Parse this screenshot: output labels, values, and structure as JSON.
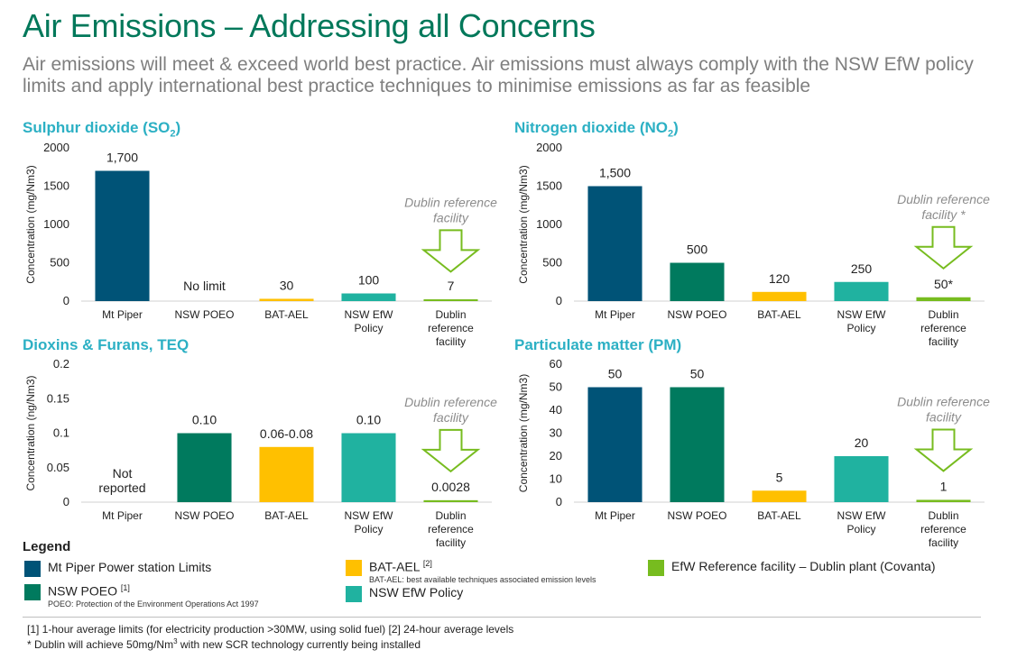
{
  "header": {
    "title": "Air Emissions – Addressing all Concerns",
    "subtitle": "Air emissions will meet & exceed world best practice. Air emissions must always comply with the NSW EfW policy limits and apply international best practice techniques to minimise emissions as far as feasible"
  },
  "colors": {
    "mt_piper": "#005377",
    "nsw_poeo": "#007a5e",
    "bat_ael": "#ffc000",
    "nsw_efw": "#20b2a0",
    "dublin": "#77bc1f"
  },
  "categories": [
    "Mt Piper",
    "NSW POEO",
    "BAT-AEL",
    "NSW EfW Policy",
    "Dublin reference facility"
  ],
  "chart_data": [
    {
      "type": "bar",
      "title": "Sulphur dioxide (SO",
      "title_sub": "2",
      "title_end": ")",
      "ylabel": "Concentration (mg/Nm3)",
      "ylim": [
        0,
        2000
      ],
      "yticks": [
        "0",
        "500",
        "1000",
        "1500",
        "2000"
      ],
      "categories": [
        "Mt Piper",
        "NSW POEO",
        "BAT-AEL",
        "NSW EfW Policy",
        "Dublin reference facility"
      ],
      "values": [
        1700,
        null,
        30,
        100,
        7
      ],
      "labels": [
        "1,700",
        "No limit",
        "30",
        "100",
        "7"
      ],
      "annotation": "Dublin reference facility"
    },
    {
      "type": "bar",
      "title": "Nitrogen dioxide (NO",
      "title_sub": "2",
      "title_end": ")",
      "ylabel": "Concentration (mg/Nm3)",
      "ylim": [
        0,
        2000
      ],
      "yticks": [
        "0",
        "500",
        "1000",
        "1500",
        "2000"
      ],
      "categories": [
        "Mt Piper",
        "NSW POEO",
        "BAT-AEL",
        "NSW EfW Policy",
        "Dublin reference facility"
      ],
      "values": [
        1500,
        500,
        120,
        250,
        50
      ],
      "labels": [
        "1,500",
        "500",
        "120",
        "250",
        "50*"
      ],
      "annotation": "Dublin reference facility *"
    },
    {
      "type": "bar",
      "title": "Dioxins & Furans, TEQ",
      "title_sub": "",
      "title_end": "",
      "ylabel": "Concentration (ng/Nm3)",
      "ylim": [
        0,
        0.2
      ],
      "yticks": [
        "0",
        "0.05",
        "0.1",
        "0.15",
        "0.2"
      ],
      "categories": [
        "Mt Piper",
        "NSW POEO",
        "BAT-AEL",
        "NSW EfW Policy",
        "Dublin reference facility"
      ],
      "values": [
        null,
        0.1,
        0.08,
        0.1,
        0.0028
      ],
      "labels": [
        "Not reported",
        "0.10",
        "0.06-0.08",
        "0.10",
        "0.0028"
      ],
      "annotation": "Dublin reference facility"
    },
    {
      "type": "bar",
      "title": "Particulate matter (PM)",
      "title_sub": "",
      "title_end": "",
      "ylabel": "Concentration (mg/Nm3)",
      "ylim": [
        0,
        60
      ],
      "yticks": [
        "0",
        "10",
        "20",
        "30",
        "40",
        "50",
        "60"
      ],
      "categories": [
        "Mt Piper",
        "NSW POEO",
        "BAT-AEL",
        "NSW EfW Policy",
        "Dublin reference facility"
      ],
      "values": [
        50,
        50,
        5,
        20,
        1
      ],
      "labels": [
        "50",
        "50",
        "5",
        "20",
        "1"
      ],
      "annotation": "Dublin reference facility"
    }
  ],
  "legend": {
    "heading": "Legend",
    "items": [
      {
        "label": "Mt Piper Power station Limits",
        "sup": "",
        "sub": ""
      },
      {
        "label": "NSW POEO ",
        "sup": "[1]",
        "sub": "POEO: Protection of the Environment Operations Act 1997"
      },
      {
        "label": "BAT-AEL ",
        "sup": "[2]",
        "sub": "BAT-AEL: best available techniques associated emission levels"
      },
      {
        "label": "NSW EfW Policy",
        "sup": "",
        "sub": ""
      },
      {
        "label": "EfW Reference facility – Dublin plant (Covanta)",
        "sup": "",
        "sub": ""
      }
    ]
  },
  "footnotes": {
    "note1": "[1] 1-hour average limits (for electricity production >30MW, using solid fuel) [2] 24-hour average levels",
    "note2_a": "* Dublin will achieve 50mg/Nm",
    "note2_sup": "3",
    "note2_b": " with new SCR technology currently being installed"
  }
}
